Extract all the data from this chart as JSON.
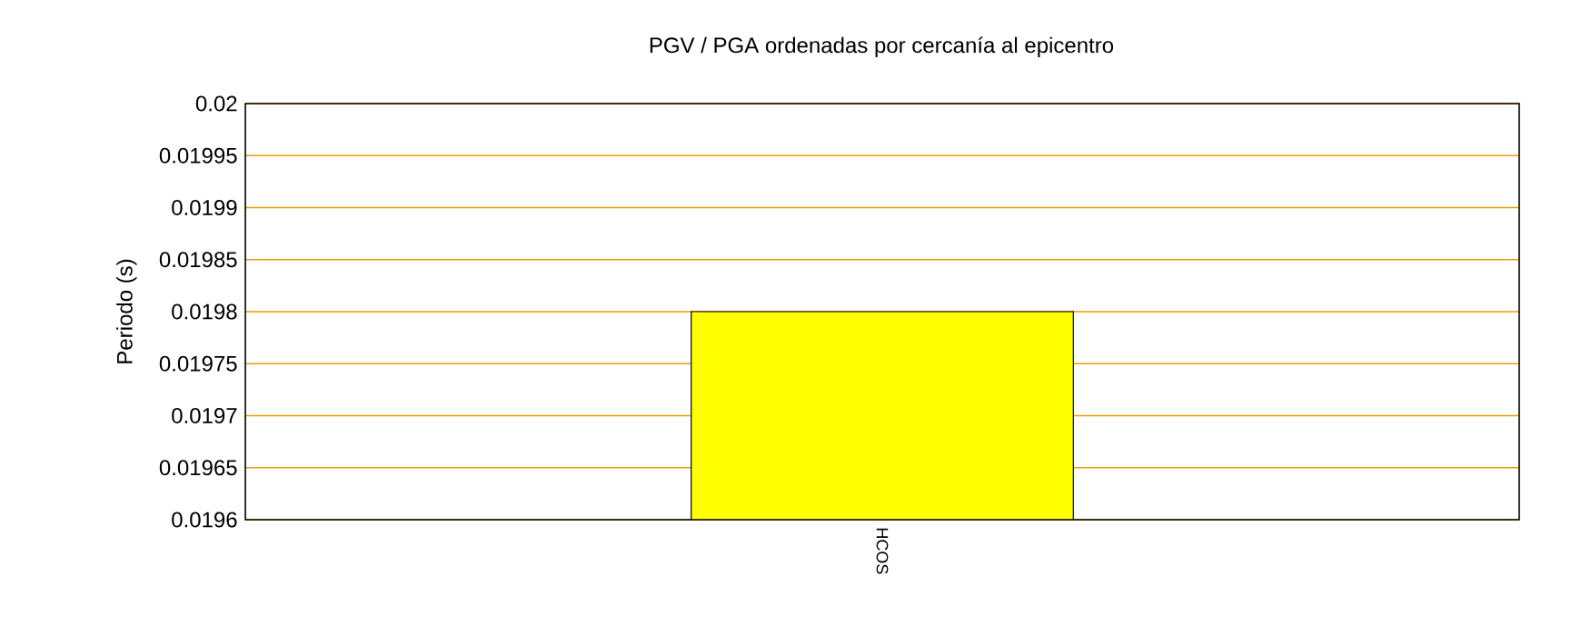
{
  "chart_data": {
    "type": "bar",
    "title": "PGV / PGA ordenadas por cercanía al epicentro",
    "ylabel": "Periodo (s)",
    "categories": [
      "HCOS"
    ],
    "values": [
      0.0198
    ],
    "color": "#ffff00",
    "ylim": [
      0.0196,
      0.02
    ],
    "yticks": [
      0.0196,
      0.01965,
      0.0197,
      0.01975,
      0.0198,
      0.01985,
      0.0199,
      0.01995,
      0.02
    ],
    "grid": "y"
  }
}
